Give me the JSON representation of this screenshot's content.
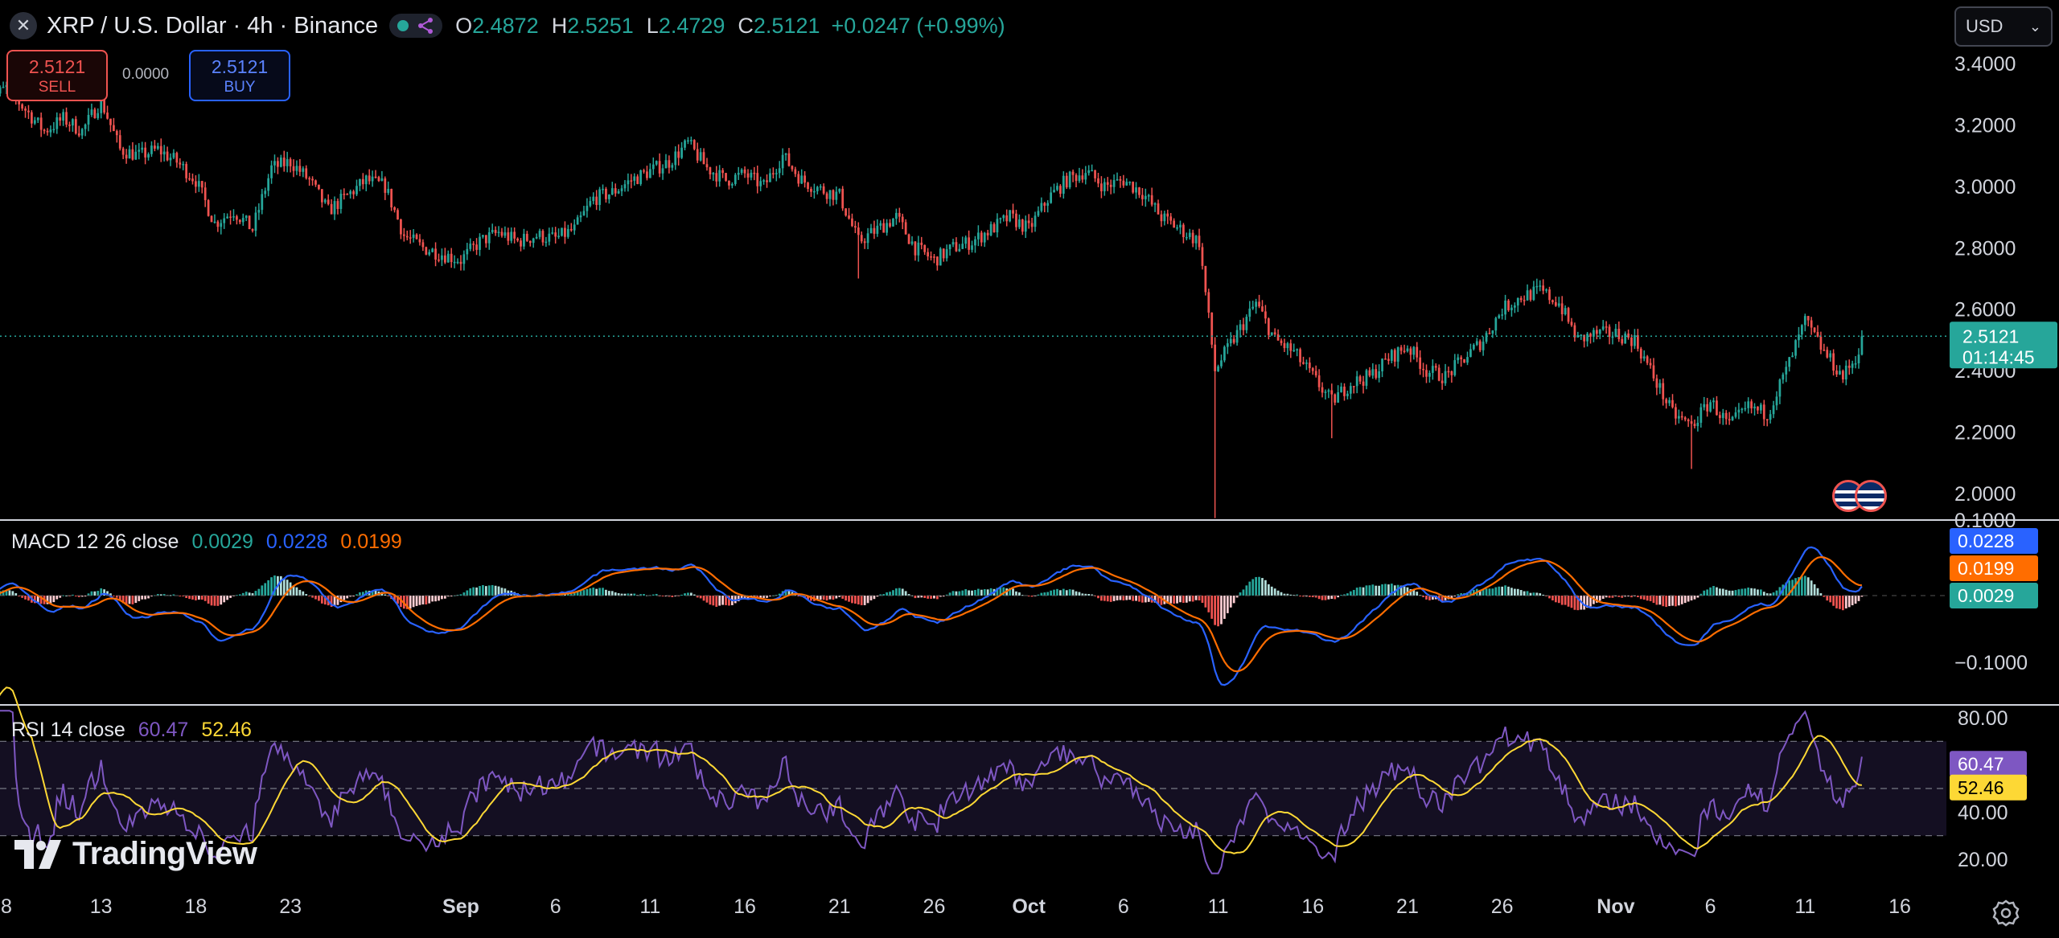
{
  "header": {
    "title": "XRP / U.S. Dollar · 4h · Binance",
    "ohlc": [
      {
        "key": "O",
        "value": "2.4872"
      },
      {
        "key": "H",
        "value": "2.5251"
      },
      {
        "key": "L",
        "value": "2.4729"
      },
      {
        "key": "C",
        "value": "2.5121"
      }
    ],
    "change": "+0.0247 (+0.99%)"
  },
  "trade": {
    "sell_price": "2.5121",
    "sell_label": "SELL",
    "buy_price": "2.5121",
    "buy_label": "BUY",
    "spread": "0.0000"
  },
  "currency": "USD",
  "colors": {
    "up": "#26a69a",
    "down": "#ef5350",
    "macd": "#2962ff",
    "signal": "#ff6d00",
    "rsi": "#7e57c2",
    "rsi_ma": "#fdd835",
    "background": "#000000"
  },
  "icons": [
    "close-icon",
    "indicator-icon",
    "chevron-down-icon",
    "settings-gear-icon",
    "tradingview-logo-icon",
    "us-flag-icon"
  ],
  "chart_data": [
    {
      "type": "candlestick",
      "name": "price",
      "y_ticks": [
        "2.0000",
        "2.2000",
        "2.4000",
        "2.6000",
        "2.8000",
        "3.0000",
        "3.2000",
        "3.4000"
      ],
      "ylim": [
        1.92,
        3.47
      ],
      "x_ticks": [
        "8",
        "13",
        "18",
        "23",
        "Sep",
        "6",
        "11",
        "16",
        "21",
        "26",
        "Oct",
        "6",
        "11",
        "16",
        "21",
        "26",
        "Nov",
        "6",
        "11",
        "16"
      ],
      "x_range_days": [
        "2025-08-07",
        "2025-11-17"
      ],
      "last_price": "2.5121",
      "countdown": "01:14:45",
      "close_path": [
        [
          "2025-08-07",
          3.28
        ],
        [
          "2025-08-08",
          3.32
        ],
        [
          "2025-08-09",
          3.25
        ],
        [
          "2025-08-10",
          3.18
        ],
        [
          "2025-08-11",
          3.22
        ],
        [
          "2025-08-12",
          3.18
        ],
        [
          "2025-08-13",
          3.28
        ],
        [
          "2025-08-14",
          3.12
        ],
        [
          "2025-08-15",
          3.1
        ],
        [
          "2025-08-16",
          3.12
        ],
        [
          "2025-08-17",
          3.08
        ],
        [
          "2025-08-18",
          3.02
        ],
        [
          "2025-08-19",
          2.88
        ],
        [
          "2025-08-20",
          2.92
        ],
        [
          "2025-08-21",
          2.86
        ],
        [
          "2025-08-22",
          3.06
        ],
        [
          "2025-08-23",
          3.08
        ],
        [
          "2025-08-24",
          3.02
        ],
        [
          "2025-08-25",
          2.92
        ],
        [
          "2025-08-26",
          2.97
        ],
        [
          "2025-08-27",
          3.02
        ],
        [
          "2025-08-28",
          3.0
        ],
        [
          "2025-08-29",
          2.84
        ],
        [
          "2025-08-30",
          2.8
        ],
        [
          "2025-08-31",
          2.78
        ],
        [
          "2025-09-01",
          2.76
        ],
        [
          "2025-09-02",
          2.82
        ],
        [
          "2025-09-03",
          2.85
        ],
        [
          "2025-09-04",
          2.82
        ],
        [
          "2025-09-05",
          2.84
        ],
        [
          "2025-09-06",
          2.83
        ],
        [
          "2025-09-07",
          2.86
        ],
        [
          "2025-09-08",
          2.96
        ],
        [
          "2025-09-09",
          2.98
        ],
        [
          "2025-09-10",
          3.02
        ],
        [
          "2025-09-11",
          3.05
        ],
        [
          "2025-09-12",
          3.08
        ],
        [
          "2025-09-13",
          3.14
        ],
        [
          "2025-09-14",
          3.06
        ],
        [
          "2025-09-15",
          3.02
        ],
        [
          "2025-09-16",
          3.04
        ],
        [
          "2025-09-17",
          3.0
        ],
        [
          "2025-09-18",
          3.1
        ],
        [
          "2025-09-19",
          3.02
        ],
        [
          "2025-09-20",
          2.99
        ],
        [
          "2025-09-21",
          2.97
        ],
        [
          "2025-09-22",
          2.82
        ],
        [
          "2025-09-23",
          2.86
        ],
        [
          "2025-09-24",
          2.9
        ],
        [
          "2025-09-25",
          2.8
        ],
        [
          "2025-09-26",
          2.76
        ],
        [
          "2025-09-27",
          2.8
        ],
        [
          "2025-09-28",
          2.82
        ],
        [
          "2025-09-29",
          2.86
        ],
        [
          "2025-09-30",
          2.9
        ],
        [
          "2025-10-01",
          2.86
        ],
        [
          "2025-10-02",
          2.96
        ],
        [
          "2025-10-03",
          3.02
        ],
        [
          "2025-10-04",
          3.05
        ],
        [
          "2025-10-05",
          3.0
        ],
        [
          "2025-10-06",
          3.02
        ],
        [
          "2025-10-07",
          2.98
        ],
        [
          "2025-10-08",
          2.9
        ],
        [
          "2025-10-09",
          2.86
        ],
        [
          "2025-10-10",
          2.82
        ],
        [
          "2025-10-10T21:00",
          2.38
        ],
        [
          "2025-10-11",
          2.42
        ],
        [
          "2025-10-12",
          2.52
        ],
        [
          "2025-10-13",
          2.62
        ],
        [
          "2025-10-14",
          2.5
        ],
        [
          "2025-10-15",
          2.46
        ],
        [
          "2025-10-16",
          2.38
        ],
        [
          "2025-10-17",
          2.3
        ],
        [
          "2025-10-18",
          2.36
        ],
        [
          "2025-10-19",
          2.38
        ],
        [
          "2025-10-20",
          2.44
        ],
        [
          "2025-10-21",
          2.48
        ],
        [
          "2025-10-22",
          2.4
        ],
        [
          "2025-10-23",
          2.38
        ],
        [
          "2025-10-24",
          2.44
        ],
        [
          "2025-10-25",
          2.5
        ],
        [
          "2025-10-26",
          2.6
        ],
        [
          "2025-10-27",
          2.64
        ],
        [
          "2025-10-28",
          2.66
        ],
        [
          "2025-10-29",
          2.62
        ],
        [
          "2025-10-30",
          2.5
        ],
        [
          "2025-10-31",
          2.52
        ],
        [
          "2025-11-01",
          2.52
        ],
        [
          "2025-11-02",
          2.5
        ],
        [
          "2025-11-03",
          2.38
        ],
        [
          "2025-11-04",
          2.26
        ],
        [
          "2025-11-05",
          2.22
        ],
        [
          "2025-11-06",
          2.3
        ],
        [
          "2025-11-07",
          2.22
        ],
        [
          "2025-11-08",
          2.28
        ],
        [
          "2025-11-09",
          2.26
        ],
        [
          "2025-11-10",
          2.4
        ],
        [
          "2025-11-11",
          2.56
        ],
        [
          "2025-11-12",
          2.46
        ],
        [
          "2025-11-13",
          2.38
        ],
        [
          "2025-11-13T20:00",
          2.46
        ],
        [
          "2025-11-14",
          2.5121
        ]
      ],
      "extreme_wicks": [
        [
          "2025-10-10T21:00",
          1.92
        ],
        [
          "2025-11-05",
          2.08
        ],
        [
          "2025-10-17",
          2.18
        ],
        [
          "2025-09-22",
          2.7
        ]
      ]
    },
    {
      "type": "line",
      "name": "MACD",
      "legend": "MACD 12 26 close",
      "values_shown": {
        "histogram": "0.0029",
        "macd": "0.0228",
        "signal": "0.0199"
      },
      "y_ticks": [
        "0.1000",
        "−0.1000"
      ],
      "ylim": [
        -0.155,
        0.12
      ]
    },
    {
      "type": "line",
      "name": "RSI",
      "legend": "RSI 14 close",
      "values_shown": {
        "rsi": "60.47",
        "rsi_ma": "52.46"
      },
      "y_ticks": [
        "80.00",
        "40.00",
        "20.00"
      ],
      "ylim": [
        13,
        84
      ],
      "bands": [
        70,
        50,
        30
      ]
    }
  ],
  "branding": "TradingView"
}
